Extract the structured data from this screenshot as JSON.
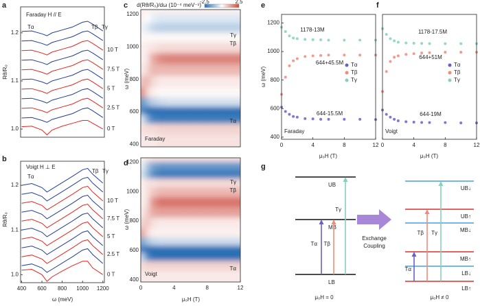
{
  "chart_data": [
    {
      "type": "line",
      "label": "a",
      "title": "Faraday H // E",
      "ylabel": "Rθ/R₀",
      "annotations": [
        {
          "text": "Tα",
          "color": "#6a5fc9"
        },
        {
          "text": "Tβ",
          "color": "#f08a78"
        },
        {
          "text": "Tγ",
          "color": "#86d0bc"
        }
      ],
      "x": [
        400,
        500,
        600,
        650,
        700,
        800,
        900,
        1000,
        1050,
        1100,
        1200
      ],
      "xlim": [
        390,
        1215
      ],
      "ylim": [
        0.983,
        1.254
      ],
      "yticks": [
        {
          "value": 1,
          "label": "1.0"
        },
        1.1,
        1.2
      ],
      "series": [
        {
          "name": "0 T",
          "color": "#e8231e",
          "values": [
            1.005,
            1.006,
            0.998,
            0.988,
            0.998,
            1.006,
            1.012,
            1.018,
            1.018,
            1.012,
            1.0
          ]
        },
        {
          "color": "#1f3c9c",
          "values": [
            1.023,
            1.024,
            1.018,
            1.014,
            1.02,
            1.026,
            1.032,
            1.042,
            1.044,
            1.038,
            1.024
          ]
        },
        {
          "name": "2.5 T",
          "color": "#e8231e",
          "values": [
            1.043,
            1.044,
            1.038,
            1.034,
            1.04,
            1.046,
            1.052,
            1.062,
            1.064,
            1.058,
            1.044
          ]
        },
        {
          "color": "#1f3c9c",
          "values": [
            1.063,
            1.064,
            1.058,
            1.054,
            1.06,
            1.066,
            1.072,
            1.082,
            1.084,
            1.078,
            1.064
          ]
        },
        {
          "name": "5 T",
          "color": "#e8231e",
          "values": [
            1.083,
            1.084,
            1.078,
            1.074,
            1.08,
            1.086,
            1.092,
            1.102,
            1.104,
            1.098,
            1.084
          ]
        },
        {
          "color": "#1f3c9c",
          "values": [
            1.103,
            1.104,
            1.098,
            1.094,
            1.1,
            1.106,
            1.112,
            1.122,
            1.124,
            1.118,
            1.104
          ]
        },
        {
          "name": "7.5 T",
          "color": "#e8231e",
          "values": [
            1.123,
            1.124,
            1.118,
            1.114,
            1.12,
            1.126,
            1.132,
            1.142,
            1.144,
            1.138,
            1.124
          ]
        },
        {
          "color": "#1f3c9c",
          "values": [
            1.143,
            1.144,
            1.138,
            1.134,
            1.14,
            1.146,
            1.152,
            1.162,
            1.164,
            1.158,
            1.144
          ]
        },
        {
          "name": "10 T",
          "color": "#e8231e",
          "values": [
            1.163,
            1.164,
            1.158,
            1.154,
            1.16,
            1.166,
            1.172,
            1.182,
            1.184,
            1.178,
            1.164
          ]
        },
        {
          "color": "#1f3c9c",
          "values": [
            1.183,
            1.184,
            1.178,
            1.174,
            1.18,
            1.186,
            1.192,
            1.202,
            1.204,
            1.198,
            1.184
          ]
        },
        {
          "color": "#1f3c9c",
          "values": [
            1.203,
            1.204,
            1.198,
            1.194,
            1.2,
            1.206,
            1.212,
            1.222,
            1.224,
            1.218,
            1.204
          ]
        }
      ]
    },
    {
      "type": "line",
      "label": "b",
      "title": "Voigt H ⊥ E",
      "ylabel": "Rθ/R₀",
      "xlabel": "ω (meV)",
      "annotations": [
        {
          "text": "Tα",
          "color": "#6a5fc9"
        },
        {
          "text": "Tβ",
          "color": "#f08a78"
        },
        {
          "text": "Tγ",
          "color": "#86d0bc"
        }
      ],
      "x": [
        400,
        500,
        600,
        650,
        700,
        800,
        900,
        1000,
        1050,
        1100,
        1200
      ],
      "xlim": [
        390,
        1215
      ],
      "ylim": [
        0.982,
        1.254
      ],
      "xticks": [
        400,
        600,
        800,
        1000,
        1200
      ],
      "yticks": [
        {
          "value": 1,
          "label": "1.0"
        },
        1.1,
        1.2
      ],
      "series": [
        {
          "name": "0 T",
          "color": "#e8231e",
          "values": [
            1.01,
            1.012,
            1.0,
            0.985,
            0.995,
            1.008,
            1.02,
            1.03,
            1.03,
            1.015,
            1.0
          ]
        },
        {
          "color": "#1f3c9c",
          "values": [
            1.02,
            1.024,
            1.015,
            1.005,
            1.012,
            1.026,
            1.04,
            1.055,
            1.058,
            1.045,
            1.025
          ]
        },
        {
          "name": "2.5 T",
          "color": "#e8231e",
          "values": [
            1.04,
            1.044,
            1.035,
            1.025,
            1.032,
            1.046,
            1.06,
            1.075,
            1.078,
            1.065,
            1.045
          ]
        },
        {
          "color": "#1f3c9c",
          "values": [
            1.06,
            1.064,
            1.055,
            1.045,
            1.052,
            1.066,
            1.08,
            1.095,
            1.098,
            1.085,
            1.065
          ]
        },
        {
          "name": "5 T",
          "color": "#e8231e",
          "values": [
            1.08,
            1.084,
            1.075,
            1.065,
            1.072,
            1.086,
            1.1,
            1.115,
            1.118,
            1.105,
            1.085
          ]
        },
        {
          "color": "#1f3c9c",
          "values": [
            1.1,
            1.104,
            1.095,
            1.085,
            1.092,
            1.106,
            1.12,
            1.135,
            1.138,
            1.125,
            1.105
          ]
        },
        {
          "name": "7.5 T",
          "color": "#e8231e",
          "values": [
            1.12,
            1.124,
            1.115,
            1.105,
            1.112,
            1.126,
            1.14,
            1.155,
            1.158,
            1.145,
            1.125
          ]
        },
        {
          "color": "#1f3c9c",
          "values": [
            1.14,
            1.144,
            1.135,
            1.125,
            1.132,
            1.146,
            1.16,
            1.175,
            1.178,
            1.165,
            1.145
          ]
        },
        {
          "name": "10 T",
          "color": "#e8231e",
          "values": [
            1.16,
            1.164,
            1.155,
            1.145,
            1.152,
            1.166,
            1.18,
            1.195,
            1.198,
            1.185,
            1.165
          ]
        },
        {
          "color": "#1f3c9c",
          "values": [
            1.18,
            1.184,
            1.175,
            1.165,
            1.172,
            1.186,
            1.2,
            1.215,
            1.218,
            1.205,
            1.185
          ]
        },
        {
          "color": "#1f3c9c",
          "values": [
            1.2,
            1.204,
            1.195,
            1.185,
            1.192,
            1.206,
            1.22,
            1.235,
            1.238,
            1.225,
            1.205
          ]
        }
      ]
    },
    {
      "type": "heatmap",
      "label": "c",
      "ylabel": "ω (meV)",
      "title": "Faraday",
      "colorbar_label": "d(Rθ/R₀)/dω (10⁻⁴ meV⁻¹)",
      "colorbar_ticks": [
        -2.5,
        2.5
      ],
      "clim": [
        -2.5,
        2.5
      ],
      "colors": [
        "#2a6fb5",
        "#ffffff",
        "#cc4a3c"
      ],
      "annotations": [
        {
          "text": "Tγ",
          "color": "#86d0bc"
        },
        {
          "text": "Tβ",
          "color": "#f08a78"
        },
        {
          "text": "Tα",
          "color": "#6a5fc9"
        }
      ],
      "xlim": [
        0,
        12
      ],
      "ylim": [
        385,
        1230
      ],
      "yticks": [
        400,
        600,
        800,
        1000,
        1200
      ],
      "x": [
        0.25,
        0.75,
        1.5,
        2.5,
        3.5,
        5,
        7,
        9,
        11
      ],
      "y": [
        430,
        500,
        560,
        610,
        660,
        720,
        790,
        860,
        930,
        1000,
        1060,
        1120,
        1180,
        1230
      ],
      "values": [
        [
          0.3,
          0.3,
          0.3,
          0.4,
          0.4,
          0.4,
          0.4,
          0.4,
          0.4
        ],
        [
          0.4,
          0.5,
          0.5,
          0.6,
          0.6,
          0.6,
          0.6,
          0.6,
          0.6
        ],
        [
          -0.5,
          -1.5,
          -2.2,
          -2.3,
          -2.3,
          -2.3,
          -2.3,
          -2.3,
          -2.3
        ],
        [
          -2.0,
          -2.5,
          -2.5,
          -2.5,
          -2.5,
          -2.5,
          -2.5,
          -2.5,
          -2.5
        ],
        [
          -1.8,
          -1.2,
          -0.8,
          -0.6,
          -0.5,
          -0.5,
          -0.5,
          -0.5,
          -0.5
        ],
        [
          1.5,
          0.6,
          0.2,
          0.1,
          0.1,
          0.1,
          0.1,
          0.1,
          0.1
        ],
        [
          0.8,
          1.0,
          0.5,
          0.3,
          0.3,
          0.3,
          0.3,
          0.3,
          0.3
        ],
        [
          0.3,
          0.6,
          1.0,
          1.0,
          1.0,
          1.0,
          1.0,
          1.0,
          1.0
        ],
        [
          0.2,
          0.4,
          1.2,
          1.6,
          1.7,
          1.7,
          1.7,
          1.7,
          1.7
        ],
        [
          0.2,
          0.3,
          0.4,
          0.5,
          0.5,
          0.5,
          0.5,
          0.5,
          0.5
        ],
        [
          0.1,
          0.1,
          0.1,
          0.1,
          0.1,
          0.1,
          0.1,
          0.1,
          0.1
        ],
        [
          -0.2,
          -0.4,
          -0.7,
          -0.8,
          -0.8,
          -0.8,
          -0.8,
          -0.8,
          -0.8
        ],
        [
          0.2,
          0.0,
          -0.3,
          -0.4,
          -0.4,
          -0.4,
          -0.4,
          -0.4,
          -0.4
        ],
        [
          0.2,
          0.2,
          0.2,
          0.2,
          0.2,
          0.2,
          0.2,
          0.2,
          0.2
        ]
      ]
    },
    {
      "type": "heatmap",
      "label": "d",
      "ylabel": "ω (meV)",
      "xlabel": "μ₀H (T)",
      "title": "Voigt",
      "clim": [
        -2.5,
        2.5
      ],
      "colors": [
        "#2a6fb5",
        "#ffffff",
        "#cc4a3c"
      ],
      "annotations": [
        {
          "text": "Tγ",
          "color": "#86d0bc"
        },
        {
          "text": "Tβ",
          "color": "#f08a78"
        },
        {
          "text": "Tα",
          "color": "#6a5fc9"
        }
      ],
      "xlim": [
        0,
        12
      ],
      "ylim": [
        385,
        1230
      ],
      "xticks": [
        0,
        4,
        8,
        12
      ],
      "yticks": [
        400,
        600,
        800,
        1000,
        1200
      ],
      "x": [
        0.25,
        0.75,
        1.5,
        2.5,
        3.5,
        5,
        7,
        9,
        11
      ],
      "y": [
        430,
        500,
        560,
        610,
        660,
        720,
        790,
        860,
        930,
        1000,
        1060,
        1120,
        1180,
        1230
      ],
      "values": [
        [
          0.3,
          0.3,
          0.3,
          0.3,
          0.3,
          0.3,
          0.3,
          0.3,
          0.3
        ],
        [
          0.5,
          0.6,
          0.6,
          0.6,
          0.6,
          0.6,
          0.6,
          0.6,
          0.6
        ],
        [
          -0.8,
          -2.0,
          -2.5,
          -2.5,
          -2.5,
          -2.5,
          -2.5,
          -2.5,
          -2.5
        ],
        [
          -2.2,
          -2.5,
          -2.5,
          -2.5,
          -2.5,
          -2.5,
          -2.5,
          -2.5,
          -2.5
        ],
        [
          -1.5,
          -1.0,
          -0.7,
          -0.6,
          -0.6,
          -0.6,
          -0.6,
          -0.6,
          -0.6
        ],
        [
          1.2,
          0.5,
          0.2,
          0.2,
          0.2,
          0.2,
          0.2,
          0.2,
          0.2
        ],
        [
          0.6,
          0.8,
          0.4,
          0.3,
          0.3,
          0.3,
          0.3,
          0.3,
          0.3
        ],
        [
          0.3,
          0.7,
          1.2,
          1.3,
          1.3,
          1.3,
          1.3,
          1.3,
          1.3
        ],
        [
          0.2,
          0.5,
          1.5,
          1.9,
          1.9,
          1.9,
          1.9,
          1.9,
          1.9
        ],
        [
          0.2,
          0.4,
          0.8,
          1.0,
          1.0,
          1.0,
          1.0,
          1.0,
          1.0
        ],
        [
          0.2,
          0.4,
          0.4,
          0.5,
          0.5,
          0.5,
          0.5,
          0.5,
          0.5
        ],
        [
          -0.5,
          -1.2,
          -2.0,
          -2.3,
          -2.3,
          -2.3,
          -2.3,
          -2.3,
          -2.3
        ],
        [
          -0.3,
          -1.0,
          -1.6,
          -1.8,
          -1.8,
          -1.8,
          -1.8,
          -1.8,
          -1.8
        ],
        [
          0.2,
          0.3,
          0.4,
          0.4,
          0.4,
          0.4,
          0.4,
          0.4,
          0.4
        ]
      ]
    },
    {
      "type": "scatter",
      "label": "e",
      "title": "Faraday",
      "ylabel": "ω (meV)",
      "xlabel": "μ₀H (T)",
      "xlim": [
        0,
        12
      ],
      "ylim": [
        385,
        1260
      ],
      "xticks": [
        0,
        4,
        8,
        12
      ],
      "yticks": [
        400,
        600,
        800,
        1000,
        1200
      ],
      "x": [
        0,
        0.5,
        1,
        1.5,
        2,
        3,
        4,
        5,
        6,
        8,
        10,
        12
      ],
      "series": [
        {
          "name": "Tα",
          "color": "#6a5fc9",
          "fit_label": "644-15.5M",
          "values": [
            610,
            580,
            560,
            545,
            540,
            530,
            528,
            525,
            525,
            525,
            525,
            523
          ]
        },
        {
          "name": "Tβ",
          "color": "#f08a78",
          "fit_label": "644+45.5M",
          "values": [
            700,
            820,
            900,
            935,
            950,
            965,
            970,
            972,
            975,
            975,
            975,
            975
          ]
        },
        {
          "name": "Tγ",
          "color": "#86d0bc",
          "fit_label": "1178-13M",
          "values": [
            1170,
            1140,
            1110,
            1095,
            1090,
            1085,
            1083,
            1082,
            1080,
            1080,
            1080,
            1080
          ]
        }
      ]
    },
    {
      "type": "scatter",
      "label": "f",
      "title": "Voigt",
      "xlabel": "μ₀H (T)",
      "xlim": [
        0,
        12
      ],
      "ylim": [
        385,
        1260
      ],
      "xticks": [
        0,
        4,
        8,
        12
      ],
      "x": [
        0,
        0.5,
        1,
        1.5,
        2,
        3,
        4,
        5,
        6,
        8,
        10,
        12
      ],
      "series": [
        {
          "name": "Tα",
          "color": "#6a5fc9",
          "fit_label": "644-19M",
          "values": [
            590,
            560,
            540,
            525,
            515,
            508,
            505,
            503,
            502,
            502,
            500,
            500
          ]
        },
        {
          "name": "Tβ",
          "color": "#f08a78",
          "fit_label": "644+51M",
          "values": [
            720,
            860,
            930,
            960,
            970,
            980,
            985,
            990,
            992,
            995,
            995,
            995
          ]
        },
        {
          "name": "Tγ",
          "color": "#86d0bc",
          "fit_label": "1178-17.5M",
          "values": [
            1160,
            1120,
            1090,
            1075,
            1065,
            1060,
            1058,
            1057,
            1055,
            1055,
            1055,
            1055
          ]
        }
      ]
    }
  ],
  "diagram": {
    "label": "g",
    "left_levels": [
      "UB",
      "MB",
      "LB"
    ],
    "transitions": [
      {
        "text": "Tα",
        "color": "#6a5fc9"
      },
      {
        "text": "Tβ",
        "color": "#f08a78"
      },
      {
        "text": "Tγ",
        "color": "#86d0bc"
      }
    ],
    "coupling": [
      "Exchange",
      "Coupling"
    ],
    "right_levels": [
      {
        "text": "UB↓",
        "color": "#4a9ee0"
      },
      {
        "text": "UB↑",
        "color": "#d6312a"
      },
      {
        "text": "MB↓",
        "color": "#4a9ee0"
      },
      {
        "text": "MB↑",
        "color": "#d6312a"
      },
      {
        "text": "LB↓",
        "color": "#4a9ee0"
      },
      {
        "text": "LB↑",
        "color": "#d6312a"
      }
    ],
    "left_caption": "μ₀H = 0",
    "right_caption": "μ₀H ≠ 0"
  }
}
